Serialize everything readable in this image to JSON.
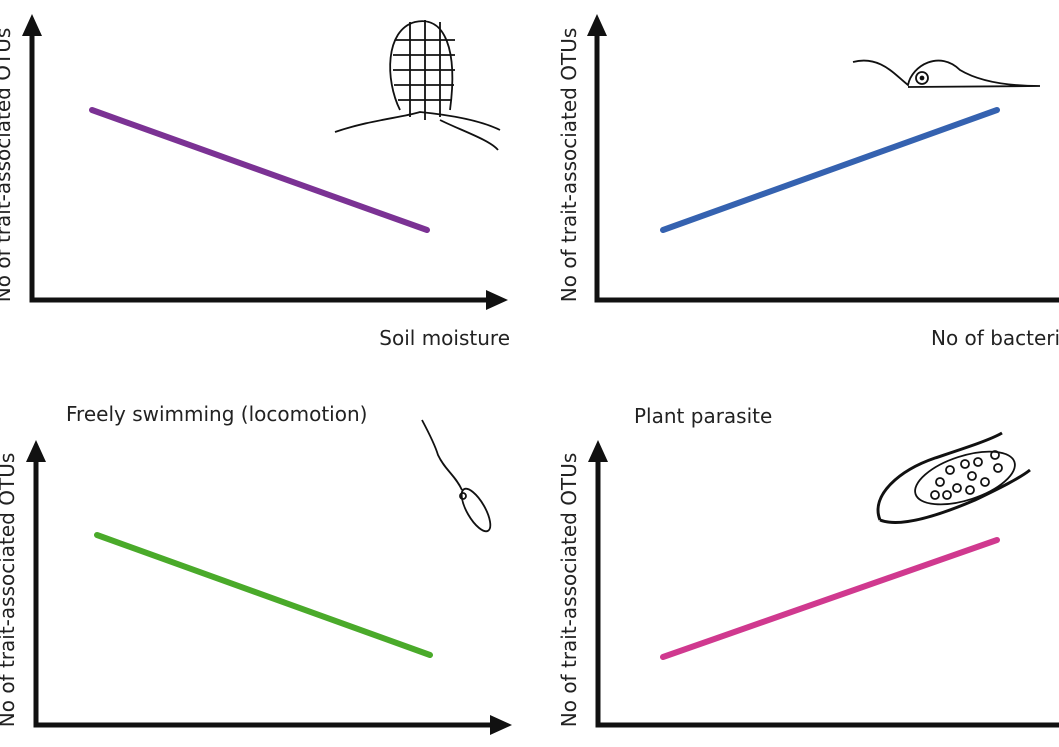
{
  "panels": [
    {
      "y_label": "No of trait-associated OTUs",
      "x_label": "Soil moisture"
    },
    {
      "y_label": "No of trait-associated OTUs",
      "x_label": "No of bacteria"
    },
    {
      "title": "Freely swimming (locomotion)",
      "y_label": "No of trait-associated OTUs"
    },
    {
      "title": "Plant parasite",
      "y_label": "No of trait-associated OTUs"
    }
  ]
}
